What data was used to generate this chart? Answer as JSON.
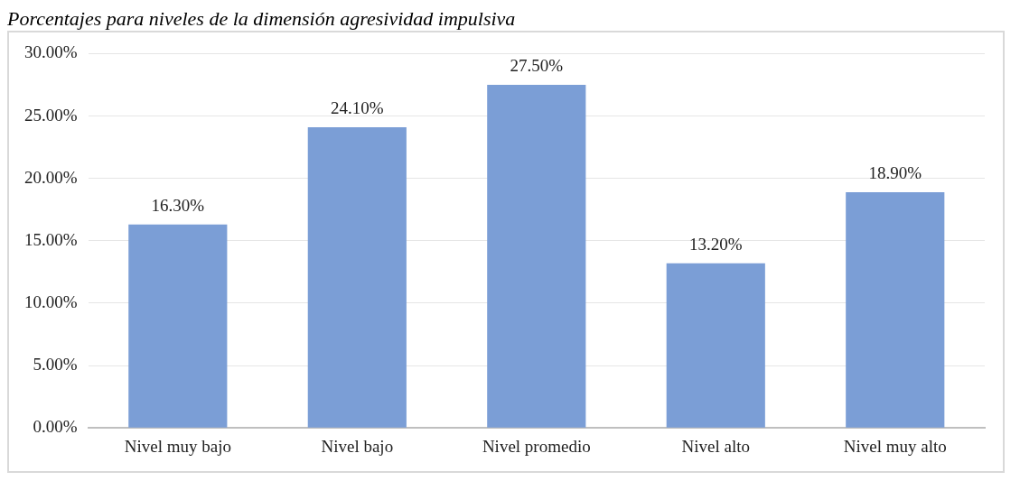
{
  "chart_data": {
    "type": "bar",
    "title": "Porcentajes para niveles de la dimensión agresividad impulsiva",
    "categories": [
      "Nivel muy bajo",
      "Nivel bajo",
      "Nivel promedio",
      "Nivel alto",
      "Nivel muy alto"
    ],
    "values": [
      16.3,
      24.1,
      27.5,
      13.2,
      18.9
    ],
    "value_labels": [
      "16.30%",
      "24.10%",
      "27.50%",
      "13.20%",
      "18.90%"
    ],
    "color": "#7b9ed6",
    "ylim": [
      0,
      30
    ],
    "yticks": [
      {
        "value": 0,
        "label": "0.00%"
      },
      {
        "value": 5,
        "label": "5.00%"
      },
      {
        "value": 10,
        "label": "10.00%"
      },
      {
        "value": 15,
        "label": "15.00%"
      },
      {
        "value": 20,
        "label": "20.00%"
      },
      {
        "value": 25,
        "label": "25.00%"
      },
      {
        "value": 30,
        "label": "30.00%"
      }
    ],
    "grid": "y",
    "legend": false
  }
}
